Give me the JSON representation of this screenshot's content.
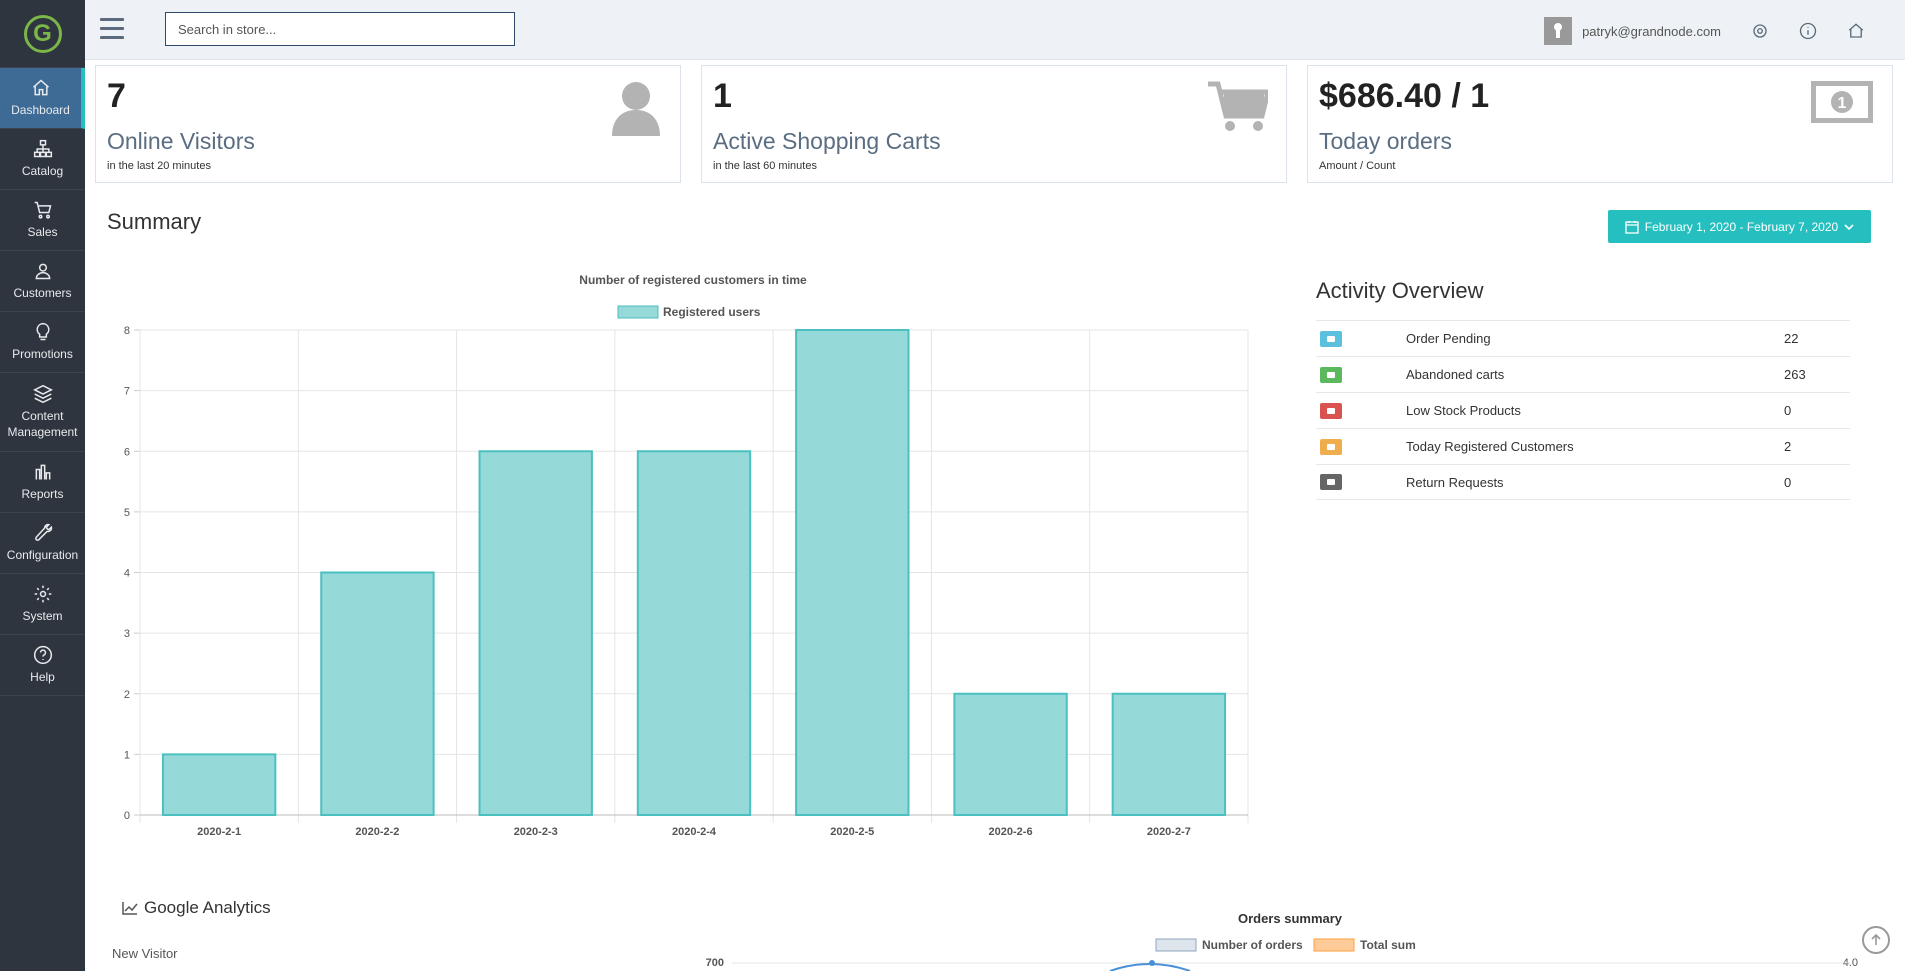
{
  "sidebar": {
    "logo_letter": "G",
    "items": [
      {
        "label": "Dashboard",
        "icon": "home-icon"
      },
      {
        "label": "Catalog",
        "icon": "sitemap-icon"
      },
      {
        "label": "Sales",
        "icon": "cart-icon"
      },
      {
        "label": "Customers",
        "icon": "users-icon"
      },
      {
        "label": "Promotions",
        "icon": "lightbulb-icon"
      },
      {
        "label": "Content Management",
        "icon": "layers-icon"
      },
      {
        "label": "Reports",
        "icon": "bar-chart-icon"
      },
      {
        "label": "Configuration",
        "icon": "wrench-icon"
      },
      {
        "label": "System",
        "icon": "gear-icon"
      },
      {
        "label": "Help",
        "icon": "question-icon"
      }
    ]
  },
  "topbar": {
    "search_placeholder": "Search in store...",
    "user_email": "patryk@grandnode.com"
  },
  "stats": [
    {
      "value": "7",
      "label": "Online Visitors",
      "sub": "in the last 20 minutes",
      "icon": "user-icon"
    },
    {
      "value": "1",
      "label": "Active Shopping Carts",
      "sub": "in the last 60 minutes",
      "icon": "cart-icon"
    },
    {
      "value": "$686.40 / 1",
      "label": "Today orders",
      "sub": "Amount / Count",
      "icon": "money-icon"
    }
  ],
  "summary": {
    "title": "Summary",
    "date_range": "February 1, 2020 - February 7, 2020"
  },
  "chart_data": {
    "type": "bar",
    "title": "Number of registered customers in time",
    "series": [
      {
        "name": "Registered users",
        "values": [
          1,
          4,
          6,
          6,
          8,
          2,
          2
        ]
      }
    ],
    "categories": [
      "2020-2-1",
      "2020-2-2",
      "2020-2-3",
      "2020-2-4",
      "2020-2-5",
      "2020-2-6",
      "2020-2-7"
    ],
    "ylim": [
      0,
      8
    ],
    "yticks": [
      "0",
      "1",
      "2",
      "3",
      "4",
      "5",
      "6",
      "7",
      "8"
    ],
    "grid": true,
    "legend": "top-center",
    "color": "#96d9d9",
    "border_color": "#4bc0c0"
  },
  "activity": {
    "title": "Activity Overview",
    "rows": [
      {
        "label": "Order Pending",
        "value": "22",
        "color": "#5bc0de",
        "icon": "briefcase-icon"
      },
      {
        "label": "Abandoned carts",
        "value": "263",
        "color": "#5cb85c",
        "icon": "cart-icon"
      },
      {
        "label": "Low Stock Products",
        "value": "0",
        "color": "#d9534f",
        "icon": "bell-icon"
      },
      {
        "label": "Today Registered Customers",
        "value": "2",
        "color": "#f0ad4e",
        "icon": "user-icon"
      },
      {
        "label": "Return Requests",
        "value": "0",
        "color": "#666666",
        "icon": "truck-icon"
      }
    ]
  },
  "analytics": {
    "title": "Google Analytics",
    "sub": "New Visitor"
  },
  "orders_chart": {
    "title": "Orders summary",
    "legend": [
      "Number of orders",
      "Total sum"
    ],
    "y_left_top": "700",
    "y_right_top": "4.0"
  }
}
